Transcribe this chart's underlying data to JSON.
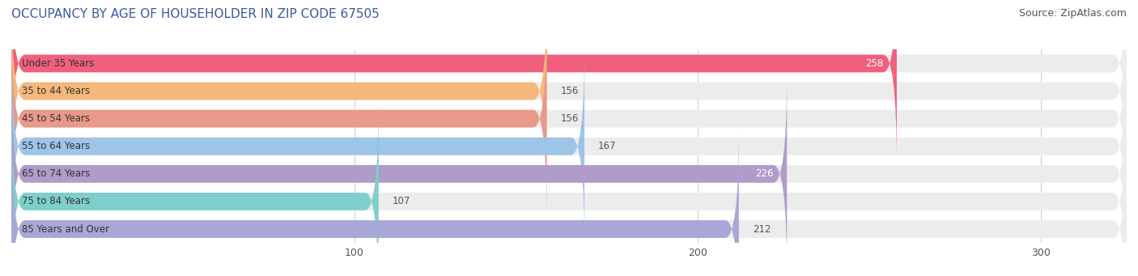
{
  "title": "OCCUPANCY BY AGE OF HOUSEHOLDER IN ZIP CODE 67505",
  "source": "Source: ZipAtlas.com",
  "categories": [
    "Under 35 Years",
    "35 to 44 Years",
    "45 to 54 Years",
    "55 to 64 Years",
    "65 to 74 Years",
    "75 to 84 Years",
    "85 Years and Over"
  ],
  "values": [
    258,
    156,
    156,
    167,
    226,
    107,
    212
  ],
  "bar_colors": [
    "#f0607c",
    "#f5b87a",
    "#e8998a",
    "#9ec4e8",
    "#b09cc8",
    "#7ecfcb",
    "#a8a8d8"
  ],
  "bar_bg_color": "#f0f0f0",
  "label_colors": [
    "#ffffff",
    "#555555",
    "#555555",
    "#555555",
    "#ffffff",
    "#555555",
    "#555555"
  ],
  "xlim": [
    0,
    325
  ],
  "xticks": [
    100,
    200,
    300
  ],
  "title_color": "#3a5ba0",
  "title_fontsize": 11,
  "source_fontsize": 9,
  "bar_height": 0.62,
  "background_color": "#ffffff"
}
